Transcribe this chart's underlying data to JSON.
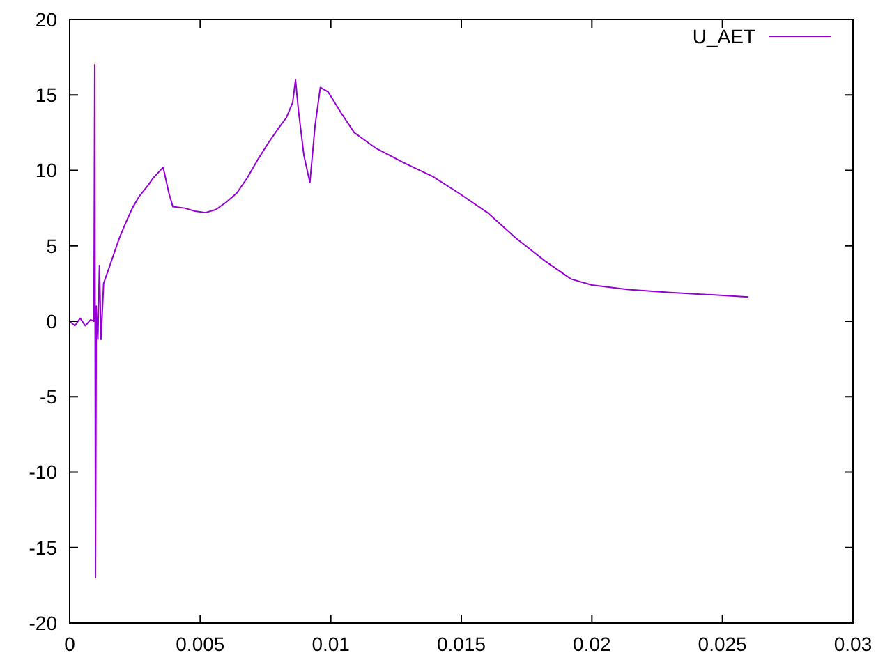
{
  "chart_data": {
    "type": "line",
    "legend": "top right",
    "grid": false,
    "xlim": [
      0,
      0.03
    ],
    "xticks": [
      0,
      0.005,
      0.01,
      0.015,
      0.02,
      0.025,
      0.03
    ],
    "ylim": [
      -20,
      20
    ],
    "yticks": [
      -20,
      -15,
      -10,
      -5,
      0,
      5,
      10,
      15,
      20
    ],
    "series": [
      {
        "name": "U_AET",
        "color": "#9400d3",
        "x": [
          0,
          0.0002,
          0.0004,
          0.0006,
          0.0008,
          0.00093,
          0.00096,
          0.00099,
          0.00102,
          0.00108,
          0.00114,
          0.0012,
          0.0013,
          0.0016,
          0.0019,
          0.00214,
          0.0024,
          0.00267,
          0.003,
          0.0032,
          0.00358,
          0.0038,
          0.00395,
          0.0044,
          0.0048,
          0.0052,
          0.0056,
          0.006,
          0.0064,
          0.0068,
          0.0072,
          0.0076,
          0.008,
          0.0083,
          0.00854,
          0.00865,
          0.00876,
          0.00897,
          0.0092,
          0.0094,
          0.0096,
          0.0099,
          0.0104,
          0.0109,
          0.0117,
          0.0128,
          0.0139,
          0.0149,
          0.016,
          0.0171,
          0.0182,
          0.0192,
          0.02,
          0.0214,
          0.023,
          0.0246,
          0.026
        ],
        "values": [
          0,
          -0.3,
          0.2,
          -0.3,
          0.1,
          0,
          17,
          -17,
          1,
          -1.2,
          3.7,
          -1.2,
          2.5,
          4,
          5.5,
          6.5,
          7.5,
          8.3,
          9,
          9.5,
          10.2,
          8.5,
          7.6,
          7.5,
          7.3,
          7.2,
          7.4,
          7.9,
          8.5,
          9.5,
          10.7,
          11.8,
          12.8,
          13.5,
          14.5,
          16,
          14,
          11,
          9.2,
          13,
          15.5,
          15.2,
          13.8,
          12.5,
          11.5,
          10.5,
          9.6,
          8.5,
          7.2,
          5.5,
          4,
          2.8,
          2.4,
          2.1,
          1.9,
          1.75,
          1.6
        ]
      }
    ]
  }
}
